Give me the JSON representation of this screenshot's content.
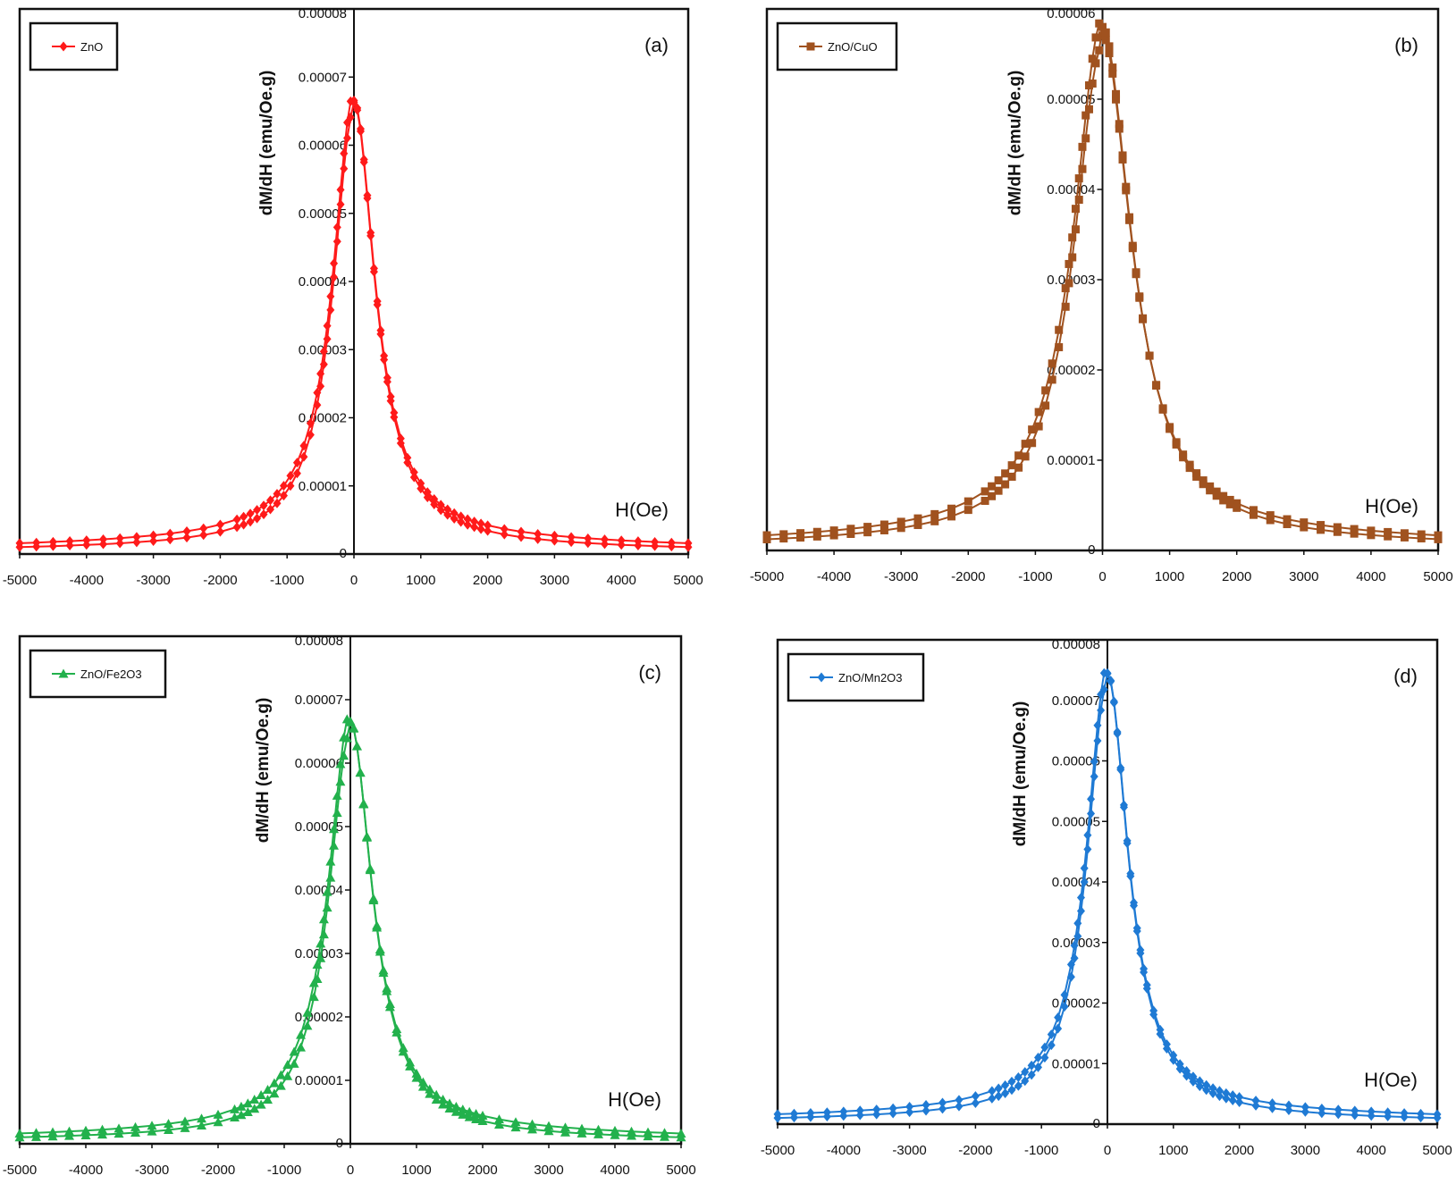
{
  "chart_data": [
    {
      "type": "line",
      "panel_label": "(a)",
      "xlabel": "H(Oe)",
      "ylabel": "dM/dH (emu/Oe.g)",
      "xlim": [
        -5000,
        5000
      ],
      "ylim": [
        0,
        8e-05
      ],
      "x_ticks": [
        "-5000",
        "-4000",
        "-3000",
        "-2000",
        "-1000",
        "0",
        "1000",
        "2000",
        "3000",
        "4000",
        "5000"
      ],
      "y_ticks": [
        "0",
        "0.00001",
        "0.00002",
        "0.00003",
        "0.00004",
        "0.00005",
        "0.00006",
        "0.00007",
        "0.00008"
      ],
      "legend": "top-left",
      "series": [
        {
          "name": "ZnO",
          "color": "#ff1a1a",
          "marker": "diamond",
          "peak": 6.4e-05,
          "width": 380,
          "asym_low": 2.8e-06,
          "asym_high": 1.5e-06,
          "offset": 8e-07
        }
      ]
    },
    {
      "type": "line",
      "panel_label": "(b)",
      "xlabel": "H(Oe)",
      "ylabel": "dM/dH (emu/Oe.g)",
      "xlim": [
        -5000,
        5000
      ],
      "ylim": [
        0,
        6e-05
      ],
      "x_ticks": [
        "-5000",
        "-4000",
        "-3000",
        "-2000",
        "-1000",
        "0",
        "1000",
        "2000",
        "3000",
        "4000",
        "5000"
      ],
      "y_ticks": [
        "0",
        "0.00001",
        "0.00002",
        "0.00003",
        "0.00004",
        "0.00005",
        "0.00006"
      ],
      "legend": "top-left",
      "series": [
        {
          "name": "ZnO/CuO",
          "color": "#a0521f",
          "marker": "square",
          "peak": 5.5e-05,
          "width": 520,
          "asym_low": 2.5e-06,
          "asym_high": 1.5e-06,
          "offset": 1.5e-06
        }
      ]
    },
    {
      "type": "line",
      "panel_label": "(c)",
      "xlabel": "H(Oe)",
      "ylabel": "dM/dH (emu/Oe.g)",
      "xlim": [
        -5000,
        5000
      ],
      "ylim": [
        0,
        8e-05
      ],
      "x_ticks": [
        "-5000",
        "-4000",
        "-3000",
        "-2000",
        "-1000",
        "0",
        "1000",
        "2000",
        "3000",
        "4000",
        "5000"
      ],
      "y_ticks": [
        "0",
        "0.00001",
        "0.00002",
        "0.00003",
        "0.00004",
        "0.00005",
        "0.00006",
        "0.00007",
        "0.00008"
      ],
      "legend": "top-left",
      "series": [
        {
          "name": "ZnO/Fe2O3",
          "color": "#22b14c",
          "marker": "triangle",
          "peak": 6.4e-05,
          "width": 400,
          "asym_low": 2.8e-06,
          "asym_high": 1.4e-06,
          "offset": 1.2e-06
        }
      ]
    },
    {
      "type": "line",
      "panel_label": "(d)",
      "xlabel": "H(Oe)",
      "ylabel": "dM/dH (emu/Oe.g)",
      "xlim": [
        -5000,
        5000
      ],
      "ylim": [
        0,
        8e-05
      ],
      "x_ticks": [
        "-5000",
        "-4000",
        "-3000",
        "-2000",
        "-1000",
        "0",
        "1000",
        "2000",
        "3000",
        "4000",
        "5000"
      ],
      "y_ticks": [
        "0",
        "0.00001",
        "0.00002",
        "0.00003",
        "0.00004",
        "0.00005",
        "0.00006",
        "0.00007",
        "0.00008"
      ],
      "legend": "top-left",
      "series": [
        {
          "name": "ZnO/Mn2O3",
          "color": "#1f7ad4",
          "marker": "diamond",
          "peak": 7.2e-05,
          "width": 380,
          "asym_low": 2.8e-06,
          "asym_high": 1.4e-06,
          "offset": 1e-06
        }
      ]
    }
  ]
}
